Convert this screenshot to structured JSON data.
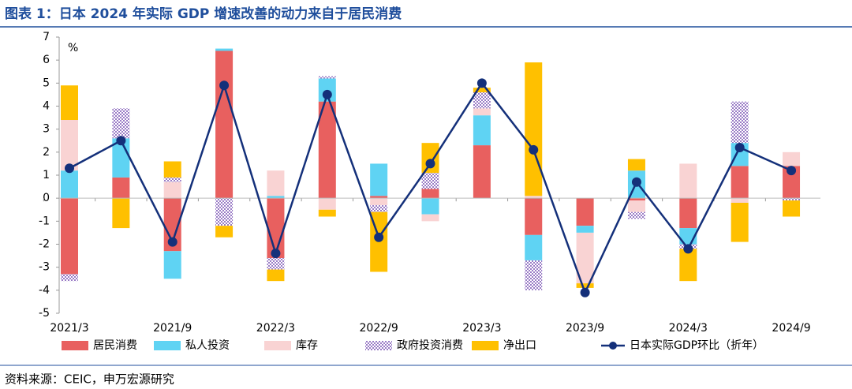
{
  "chart_data": {
    "type": "bar",
    "stacked": true,
    "title": "图表 1：日本 2024 年实际 GDP 增速改善的动力来自于居民消费",
    "y_label": "%",
    "source": "资料来源：CEIC，申万宏源研究",
    "categories": [
      "2021/3",
      null,
      "2021/9",
      null,
      "2022/3",
      null,
      "2022/9",
      null,
      "2023/3",
      null,
      "2023/9",
      null,
      "2024/3",
      null,
      "2024/9"
    ],
    "series": [
      {
        "name": "居民消费",
        "color": "#e8605f",
        "values": [
          -3.3,
          0.9,
          -2.3,
          6.4,
          -2.6,
          4.2,
          0.1,
          0.4,
          2.3,
          -1.6,
          -1.2,
          -0.1,
          -1.3,
          1.4,
          1.4
        ]
      },
      {
        "name": "私人投资",
        "color": "#5fd3f3",
        "values": [
          1.2,
          1.7,
          -1.2,
          0.1,
          0.1,
          1.0,
          1.4,
          -0.7,
          1.3,
          -1.1,
          -0.3,
          1.2,
          -0.7,
          1.0,
          0
        ]
      },
      {
        "name": "库存",
        "color": "#f9d3d3",
        "values": [
          2.2,
          0,
          0.7,
          0,
          1.1,
          -0.5,
          -0.3,
          -0.3,
          0.3,
          0.1,
          -2.2,
          -0.5,
          1.5,
          -0.2,
          0.6
        ]
      },
      {
        "name": "政府投资消费",
        "color": "#9a7cc6",
        "pattern": "checker",
        "values": [
          -0.3,
          1.3,
          0.2,
          -1.2,
          -0.5,
          0.1,
          -0.3,
          0.7,
          0.7,
          -1.3,
          0,
          -0.3,
          -0.2,
          1.8,
          -0.1
        ]
      },
      {
        "name": "净出口",
        "color": "#ffc000",
        "values": [
          1.5,
          -1.3,
          0.7,
          -0.5,
          -0.5,
          -0.3,
          -2.6,
          1.3,
          0.2,
          5.8,
          -0.2,
          0.5,
          -1.4,
          -1.7,
          -0.7
        ]
      },
      {
        "name": "日本实际GDP环比（折年）",
        "color": "#14307a",
        "type": "line",
        "values": [
          1.3,
          2.5,
          -1.9,
          4.9,
          -2.4,
          4.5,
          -1.7,
          1.5,
          5.0,
          2.1,
          -4.1,
          0.7,
          -2.2,
          2.2,
          1.2
        ]
      }
    ],
    "ylim": [
      -5,
      7
    ],
    "yticks": [
      -5,
      -4,
      -3,
      -2,
      -1,
      0,
      1,
      2,
      3,
      4,
      5,
      6,
      7
    ],
    "legend": "bottom"
  }
}
